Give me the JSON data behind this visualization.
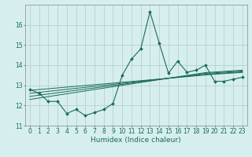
{
  "title": "",
  "xlabel": "Humidex (Indice chaleur)",
  "ylabel": "",
  "background_color": "#d6eeee",
  "grid_color": "#b0cccc",
  "line_color": "#1a6b5a",
  "x_values": [
    0,
    1,
    2,
    3,
    4,
    5,
    6,
    7,
    8,
    9,
    10,
    11,
    12,
    13,
    14,
    15,
    16,
    17,
    18,
    19,
    20,
    21,
    22,
    23
  ],
  "main_line": [
    12.8,
    12.6,
    12.2,
    12.2,
    11.6,
    11.8,
    11.5,
    11.65,
    11.8,
    12.1,
    13.5,
    14.3,
    14.8,
    16.65,
    15.1,
    13.6,
    14.2,
    13.65,
    13.75,
    14.0,
    13.2,
    13.2,
    13.3,
    13.4
  ],
  "trend_lines": [
    [
      12.75,
      12.79,
      12.83,
      12.87,
      12.91,
      12.95,
      12.99,
      13.03,
      13.07,
      13.11,
      13.15,
      13.19,
      13.23,
      13.27,
      13.31,
      13.35,
      13.39,
      13.43,
      13.47,
      13.51,
      13.55,
      13.58,
      13.61,
      13.64
    ],
    [
      12.6,
      12.65,
      12.7,
      12.75,
      12.8,
      12.85,
      12.9,
      12.95,
      13.0,
      13.05,
      13.1,
      13.15,
      13.2,
      13.25,
      13.3,
      13.35,
      13.4,
      13.45,
      13.5,
      13.55,
      13.58,
      13.61,
      13.64,
      13.67
    ],
    [
      12.45,
      12.51,
      12.57,
      12.63,
      12.69,
      12.75,
      12.81,
      12.87,
      12.93,
      12.99,
      13.05,
      13.11,
      13.17,
      13.23,
      13.29,
      13.35,
      13.41,
      13.47,
      13.53,
      13.59,
      13.62,
      13.65,
      13.68,
      13.71
    ],
    [
      12.3,
      12.37,
      12.44,
      12.51,
      12.58,
      12.65,
      12.72,
      12.79,
      12.86,
      12.93,
      13.0,
      13.07,
      13.14,
      13.21,
      13.28,
      13.35,
      13.42,
      13.49,
      13.56,
      13.63,
      13.66,
      13.69,
      13.72,
      13.75
    ]
  ],
  "ylim": [
    11,
    17
  ],
  "yticks": [
    11,
    12,
    13,
    14,
    15,
    16
  ],
  "xticks": [
    0,
    1,
    2,
    3,
    4,
    5,
    6,
    7,
    8,
    9,
    10,
    11,
    12,
    13,
    14,
    15,
    16,
    17,
    18,
    19,
    20,
    21,
    22,
    23
  ],
  "tick_label_fontsize": 5.5,
  "xlabel_fontsize": 6.5
}
